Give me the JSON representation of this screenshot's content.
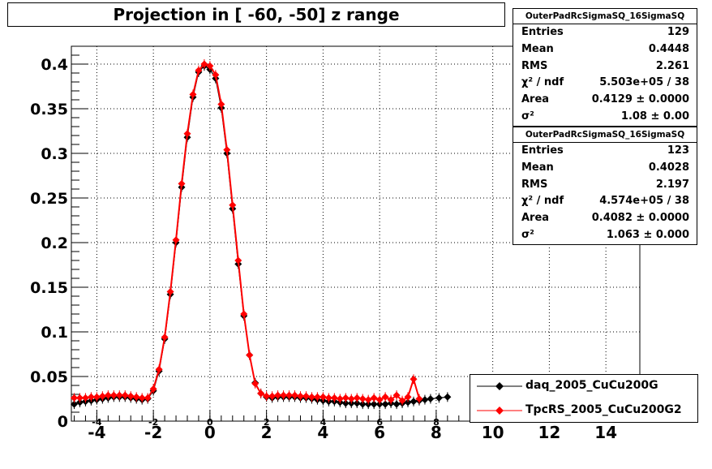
{
  "title": "Projection in [ -60, -50] z range",
  "stats_boxes": [
    {
      "header": "OuterPadRcSigmaSQ_16SigmaSQ",
      "rows": [
        {
          "label": "Entries",
          "value": "129"
        },
        {
          "label": "Mean",
          "value": "0.4448"
        },
        {
          "label": "RMS",
          "value": "2.261"
        },
        {
          "label": "χ² / ndf",
          "value": "5.503e+05 / 38"
        },
        {
          "label": "Area",
          "value": "0.4129 ± 0.0000"
        },
        {
          "label": "σ²",
          "value": "1.08 ± 0.00"
        }
      ]
    },
    {
      "header": "OuterPadRcSigmaSQ_16SigmaSQ",
      "rows": [
        {
          "label": "Entries",
          "value": "123"
        },
        {
          "label": "Mean",
          "value": "0.4028"
        },
        {
          "label": "RMS",
          "value": "2.197"
        },
        {
          "label": "χ² / ndf",
          "value": "4.574e+05 / 38"
        },
        {
          "label": "Area",
          "value": "0.4082 ± 0.0000"
        },
        {
          "label": "σ²",
          "value": "1.063 ± 0.000"
        }
      ]
    }
  ],
  "legend": [
    {
      "label": "daq_2005_CuCu200G",
      "color": "#000000"
    },
    {
      "label": "TpcRS_2005_CuCu200G2",
      "color": "#ff0000"
    }
  ],
  "colors": {
    "series1": "#000000",
    "series2": "#ff0000"
  },
  "chart_data": {
    "type": "scatter",
    "xlim": [
      -4.9,
      15.2
    ],
    "ylim": [
      0,
      0.42
    ],
    "grid": true,
    "legend_position": "bottom-right",
    "x_ticks": [
      "-4",
      "-2",
      "0",
      "2",
      "4",
      "6",
      "8",
      "10",
      "12",
      "14"
    ],
    "x_ticks_minor": [
      "-4",
      "-2",
      "0",
      "2",
      "4",
      "6",
      "8"
    ],
    "y_ticks": [
      "0",
      "0.05",
      "0.1",
      "0.15",
      "0.2",
      "0.25",
      "0.3",
      "0.35",
      "0.4"
    ],
    "series": [
      {
        "name": "daq_2005_CuCu200G",
        "color": "#000000",
        "marker": "diamond",
        "x": [
          -4.8,
          -4.6,
          -4.4,
          -4.2,
          -4.0,
          -3.8,
          -3.6,
          -3.4,
          -3.2,
          -3.0,
          -2.8,
          -2.6,
          -2.4,
          -2.2,
          -2.0,
          -1.8,
          -1.6,
          -1.4,
          -1.2,
          -1.0,
          -0.8,
          -0.6,
          -0.4,
          -0.2,
          0.0,
          0.2,
          0.4,
          0.6,
          0.8,
          1.0,
          1.2,
          1.4,
          1.6,
          1.8,
          2.0,
          2.2,
          2.4,
          2.6,
          2.8,
          3.0,
          3.2,
          3.4,
          3.6,
          3.8,
          4.0,
          4.2,
          4.4,
          4.6,
          4.8,
          5.0,
          5.2,
          5.4,
          5.6,
          5.8,
          6.0,
          6.2,
          6.4,
          6.6,
          6.8,
          7.0,
          7.2,
          7.4,
          7.6,
          7.8,
          8.1,
          8.4
        ],
        "y": [
          0.019,
          0.021,
          0.022,
          0.023,
          0.024,
          0.025,
          0.026,
          0.027,
          0.027,
          0.027,
          0.026,
          0.025,
          0.024,
          0.025,
          0.034,
          0.056,
          0.092,
          0.142,
          0.2,
          0.262,
          0.318,
          0.363,
          0.391,
          0.398,
          0.394,
          0.384,
          0.351,
          0.3,
          0.238,
          0.176,
          0.118,
          0.074,
          0.043,
          0.031,
          0.027,
          0.026,
          0.027,
          0.027,
          0.027,
          0.027,
          0.026,
          0.026,
          0.025,
          0.024,
          0.023,
          0.022,
          0.022,
          0.021,
          0.02,
          0.02,
          0.02,
          0.019,
          0.019,
          0.019,
          0.019,
          0.019,
          0.02,
          0.019,
          0.02,
          0.021,
          0.022,
          0.023,
          0.024,
          0.025,
          0.026,
          0.027
        ]
      },
      {
        "name": "TpcRS_2005_CuCu200G2",
        "color": "#ff0000",
        "marker": "diamond",
        "x": [
          -4.8,
          -4.6,
          -4.4,
          -4.2,
          -4.0,
          -3.8,
          -3.6,
          -3.4,
          -3.2,
          -3.0,
          -2.8,
          -2.6,
          -2.4,
          -2.2,
          -2.0,
          -1.8,
          -1.6,
          -1.4,
          -1.2,
          -1.0,
          -0.8,
          -0.6,
          -0.4,
          -0.2,
          0.0,
          0.2,
          0.4,
          0.6,
          0.8,
          1.0,
          1.2,
          1.4,
          1.6,
          1.8,
          2.0,
          2.2,
          2.4,
          2.6,
          2.8,
          3.0,
          3.2,
          3.4,
          3.6,
          3.8,
          4.0,
          4.2,
          4.4,
          4.6,
          4.8,
          5.0,
          5.2,
          5.4,
          5.6,
          5.8,
          6.0,
          6.2,
          6.4,
          6.6,
          6.8,
          7.0,
          7.2,
          7.4
        ],
        "y": [
          0.026,
          0.026,
          0.026,
          0.027,
          0.027,
          0.028,
          0.029,
          0.029,
          0.029,
          0.029,
          0.028,
          0.027,
          0.026,
          0.026,
          0.036,
          0.058,
          0.094,
          0.145,
          0.203,
          0.266,
          0.322,
          0.366,
          0.393,
          0.4,
          0.398,
          0.388,
          0.355,
          0.304,
          0.242,
          0.18,
          0.12,
          0.074,
          0.042,
          0.031,
          0.028,
          0.028,
          0.029,
          0.029,
          0.029,
          0.029,
          0.028,
          0.028,
          0.027,
          0.027,
          0.027,
          0.026,
          0.026,
          0.025,
          0.026,
          0.025,
          0.026,
          0.025,
          0.024,
          0.026,
          0.024,
          0.027,
          0.024,
          0.029,
          0.023,
          0.027,
          0.047,
          0.025
        ]
      }
    ]
  }
}
